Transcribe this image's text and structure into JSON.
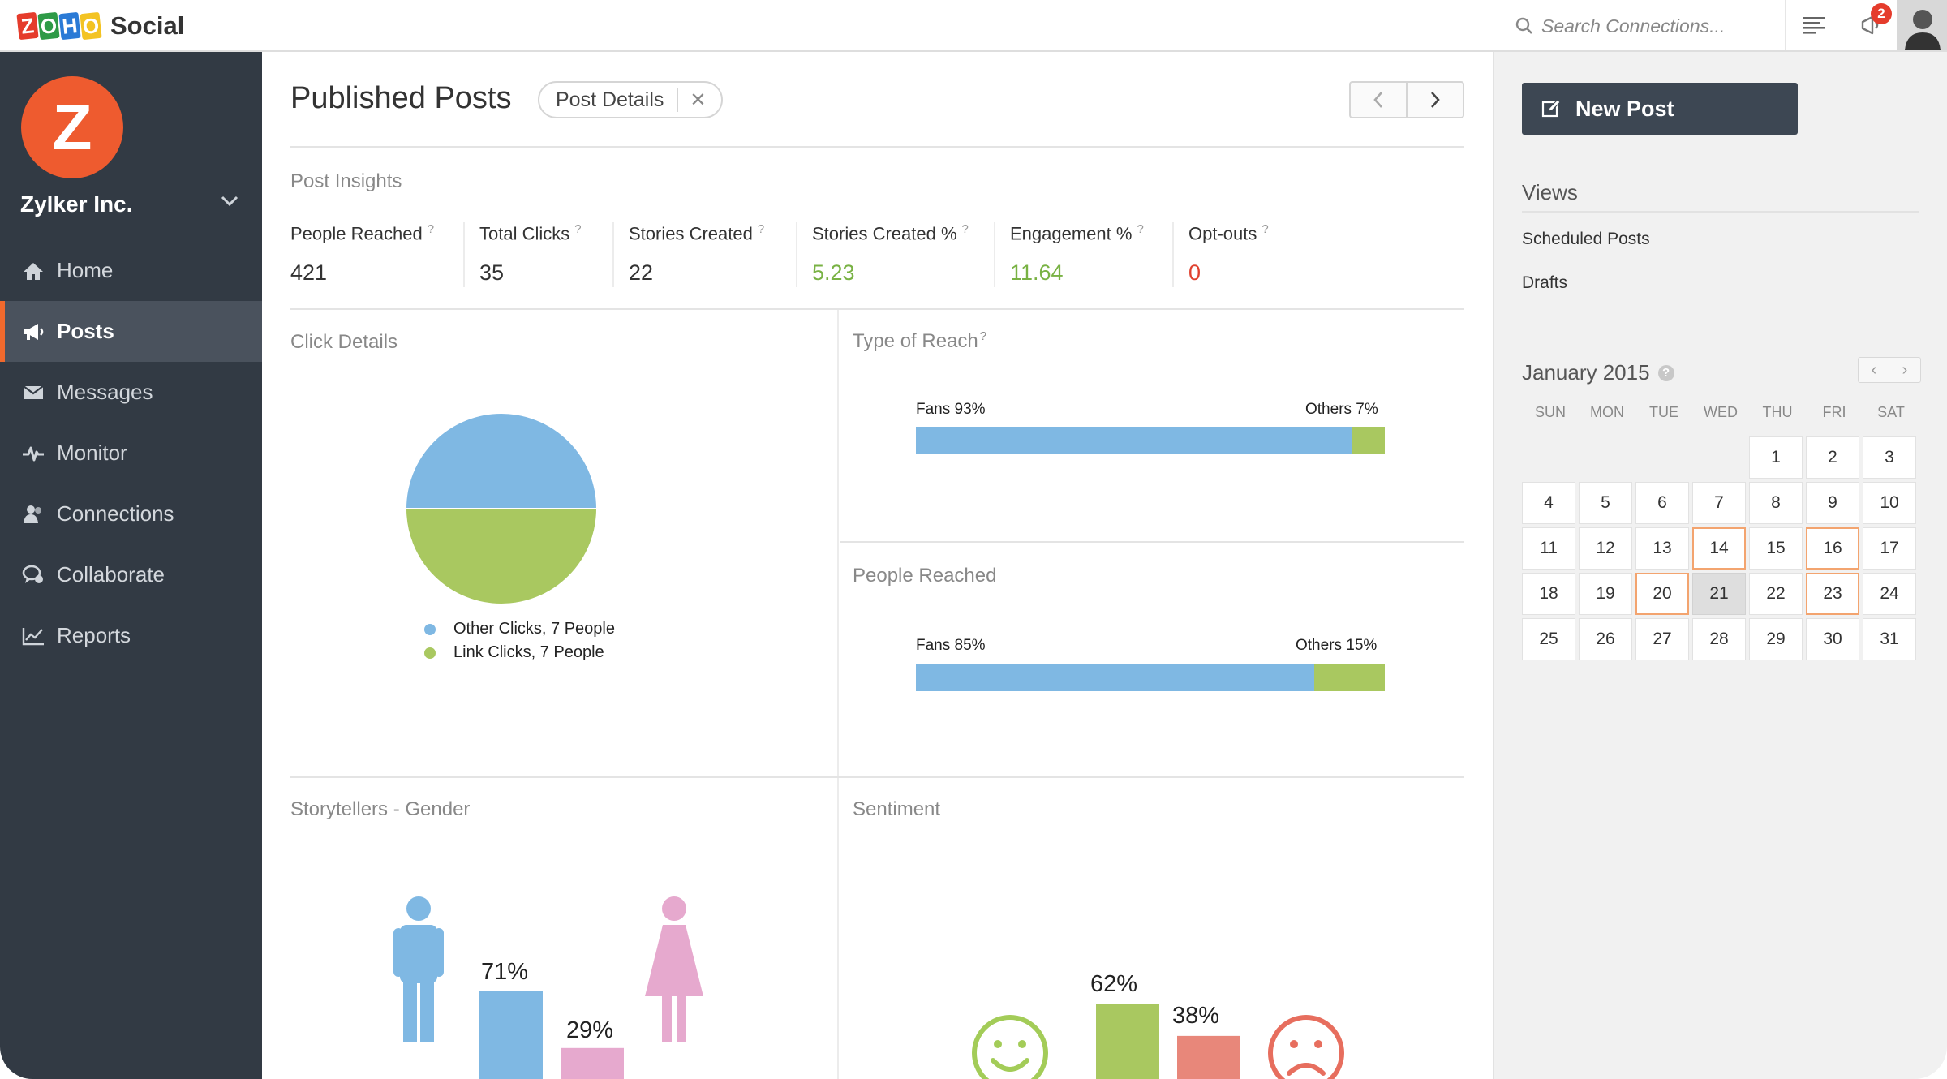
{
  "app": {
    "logo_letters": [
      "Z",
      "O",
      "H",
      "O"
    ],
    "name": "Social",
    "search_placeholder": "Search Connections...",
    "notification_count": "2"
  },
  "colors": {
    "sidebar_bg": "#323a44",
    "accent": "#f0692d",
    "blue": "#7fb8e3",
    "green": "#a9c860",
    "pink": "#e6a9ce",
    "red_bar": "#e8877a",
    "smile_green": "#a3cc58",
    "frown_red": "#e76e5e"
  },
  "sidebar": {
    "org_initial": "Z",
    "org_name": "Zylker Inc.",
    "items": [
      {
        "label": "Home",
        "icon": "home-icon"
      },
      {
        "label": "Posts",
        "icon": "megaphone-icon",
        "active": true
      },
      {
        "label": "Messages",
        "icon": "envelope-icon"
      },
      {
        "label": "Monitor",
        "icon": "pulse-icon"
      },
      {
        "label": "Connections",
        "icon": "people-icon"
      },
      {
        "label": "Collaborate",
        "icon": "chat-icon"
      },
      {
        "label": "Reports",
        "icon": "line-chart-icon"
      }
    ]
  },
  "main": {
    "title": "Published Posts",
    "chip_label": "Post Details",
    "insights_title": "Post Insights",
    "metrics": [
      {
        "label": "People Reached",
        "value": "421",
        "tone": "normal"
      },
      {
        "label": "Total Clicks",
        "value": "35",
        "tone": "normal"
      },
      {
        "label": "Stories Created",
        "value": "22",
        "tone": "normal"
      },
      {
        "label": "Stories Created %",
        "value": "5.23",
        "tone": "green"
      },
      {
        "label": "Engagement %",
        "value": "11.64",
        "tone": "green"
      },
      {
        "label": "Opt-outs",
        "value": "0",
        "tone": "red"
      }
    ],
    "click_details": {
      "title": "Click Details",
      "legend": [
        "Other Clicks, 7 People",
        "Link Clicks, 7 People"
      ]
    },
    "type_of_reach": {
      "title": "Type of Reach",
      "left": "Fans 93%",
      "right": "Others 7%"
    },
    "people_reached": {
      "title": "People Reached",
      "left": "Fans 85%",
      "right": "Others 15%"
    },
    "gender": {
      "title": "Storytellers - Gender",
      "male": "71%",
      "female": "29%"
    },
    "sentiment": {
      "title": "Sentiment",
      "positive": "62%",
      "negative": "38%"
    }
  },
  "chart_data": [
    {
      "type": "pie",
      "title": "Click Details",
      "categories": [
        "Other Clicks",
        "Link Clicks"
      ],
      "values": [
        7,
        7
      ]
    },
    {
      "type": "bar",
      "title": "Type of Reach",
      "categories": [
        "Fans",
        "Others"
      ],
      "values": [
        93,
        7
      ]
    },
    {
      "type": "bar",
      "title": "People Reached",
      "categories": [
        "Fans",
        "Others"
      ],
      "values": [
        85,
        15
      ]
    },
    {
      "type": "bar",
      "title": "Storytellers - Gender",
      "categories": [
        "Male",
        "Female"
      ],
      "values": [
        71,
        29
      ]
    },
    {
      "type": "bar",
      "title": "Sentiment",
      "categories": [
        "Positive",
        "Negative"
      ],
      "values": [
        62,
        38
      ]
    }
  ],
  "right_panel": {
    "new_post_label": "New Post",
    "views_title": "Views",
    "views": [
      "Scheduled Posts",
      "Drafts"
    ],
    "calendar": {
      "title": "January 2015",
      "weekdays": [
        "SUN",
        "MON",
        "TUE",
        "WED",
        "THU",
        "FRI",
        "SAT"
      ],
      "first_weekday_index": 4,
      "days": 31,
      "highlighted": [
        14,
        16,
        20,
        23
      ],
      "today": 21
    }
  }
}
